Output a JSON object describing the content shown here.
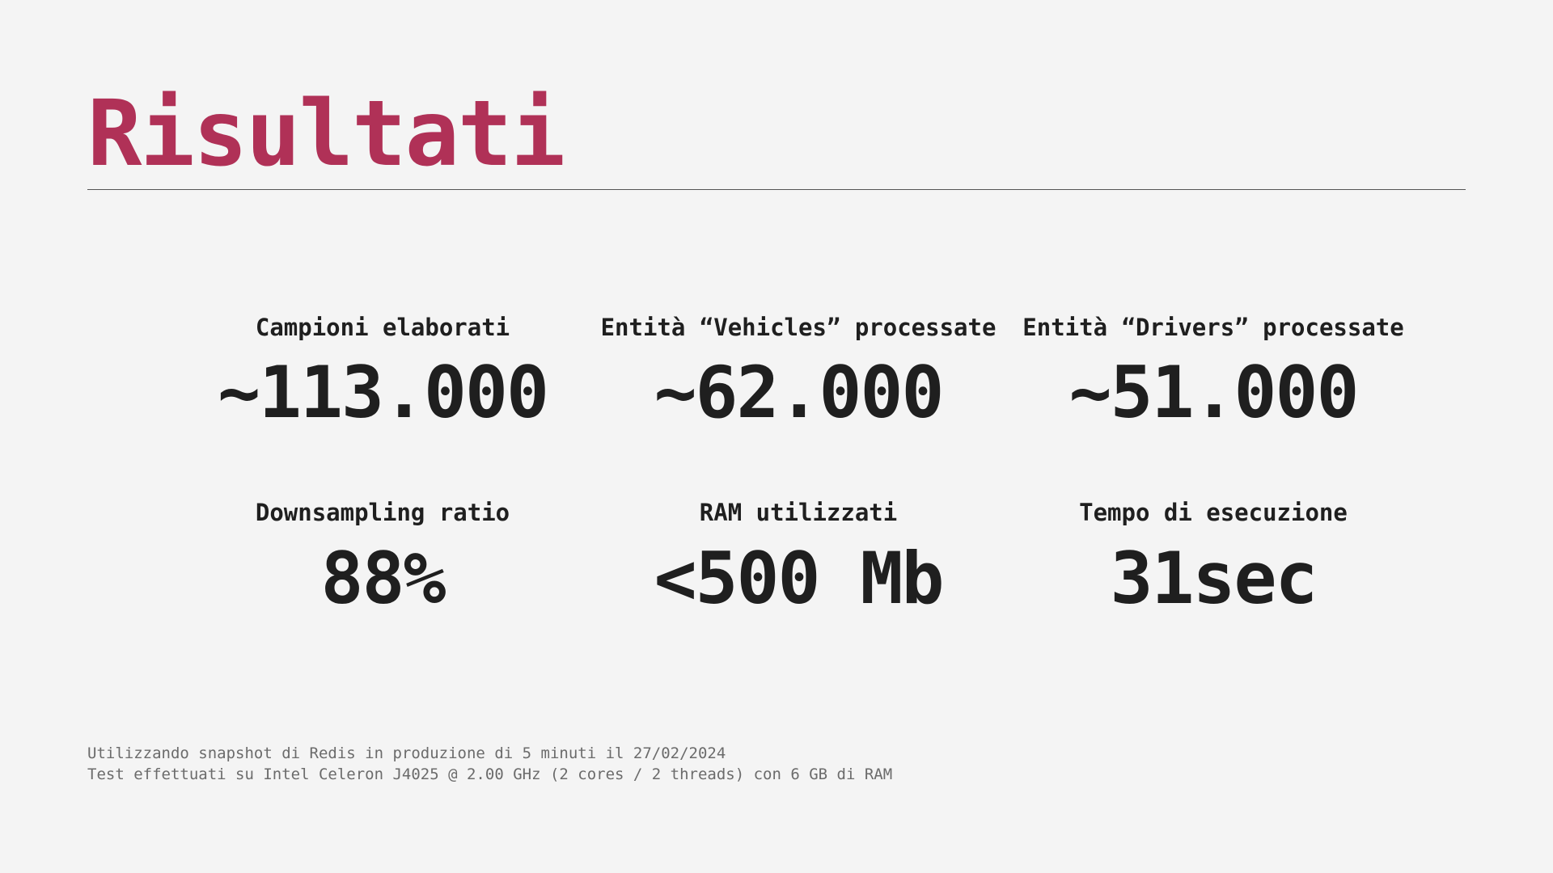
{
  "slide": {
    "title": "Risultati",
    "accent_color": "#b03157",
    "background_color": "#f4f4f4"
  },
  "stats": [
    {
      "label": "Campioni elaborati",
      "value": "~113.000"
    },
    {
      "label": "Entità “Vehicles” processate",
      "value": "~62.000"
    },
    {
      "label": "Entità “Drivers” processate",
      "value": "~51.000"
    },
    {
      "label": "Downsampling ratio",
      "value": "88%"
    },
    {
      "label": "RAM utilizzati",
      "value": "<500 Mb"
    },
    {
      "label": "Tempo di esecuzione",
      "value": "31sec"
    }
  ],
  "footnote": {
    "line1": "Utilizzando snapshot di Redis in produzione di 5 minuti il 27/02/2024",
    "line2": "Test effettuati su Intel Celeron J4025 @ 2.00 GHz (2 cores / 2 threads) con 6 GB di RAM"
  }
}
